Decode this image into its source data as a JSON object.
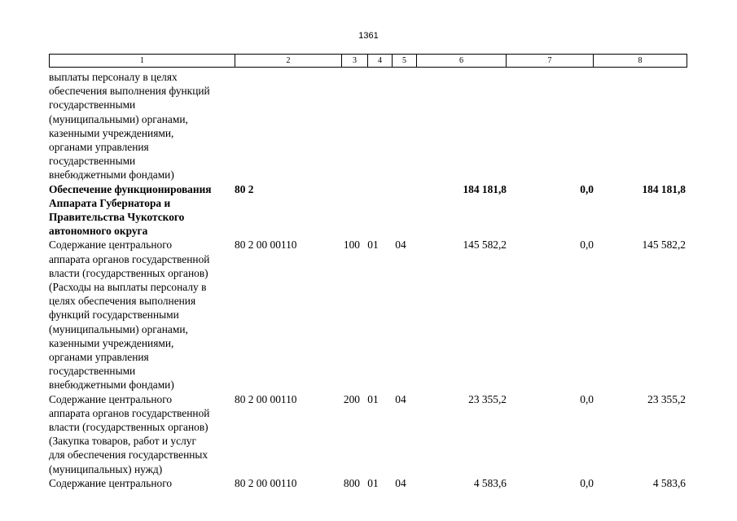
{
  "page_number": "1361",
  "header_columns": [
    "1",
    "2",
    "3",
    "4",
    "5",
    "6",
    "7",
    "8"
  ],
  "rows": [
    {
      "name": "выплаты персоналу в целях\nобеспечения выполнения функций\nгосударственными\n(муниципальными) органами,\nказенными учреждениями,\nорганами управления\nгосударственными\nвнебюджетными фондами)",
      "code": "",
      "type": "",
      "section": "",
      "subsection": "",
      "amount": "",
      "change": "",
      "total": "",
      "bold": false
    },
    {
      "name": "Обеспечение функционирования\nАппарата Губернатора и\nПравительства Чукотского\nавтономного округа",
      "code": "80 2",
      "type": "",
      "section": "",
      "subsection": "",
      "amount": "184 181,8",
      "change": "0,0",
      "total": "184 181,8",
      "bold": true
    },
    {
      "name": "Содержание центрального\nаппарата органов государственной\nвласти (государственных органов)\n(Расходы на выплаты персоналу в\nцелях обеспечения выполнения\nфункций государственными\n(муниципальными) органами,\nказенными учреждениями,\nорганами управления\nгосударственными\nвнебюджетными фондами)",
      "code": "80 2 00 00110",
      "type": "100",
      "section": "01",
      "subsection": "04",
      "amount": "145 582,2",
      "change": "0,0",
      "total": "145 582,2",
      "bold": false
    },
    {
      "name": "Содержание центрального\nаппарата органов государственной\nвласти (государственных органов)\n(Закупка товаров, работ и услуг\nдля обеспечения государственных\n(муниципальных) нужд)",
      "code": "80 2 00 00110",
      "type": "200",
      "section": "01",
      "subsection": "04",
      "amount": "23 355,2",
      "change": "0,0",
      "total": "23 355,2",
      "bold": false
    },
    {
      "name": "Содержание центрального",
      "code": "80 2 00 00110",
      "type": "800",
      "section": "01",
      "subsection": "04",
      "amount": "4 583,6",
      "change": "0,0",
      "total": "4 583,6",
      "bold": false
    }
  ]
}
